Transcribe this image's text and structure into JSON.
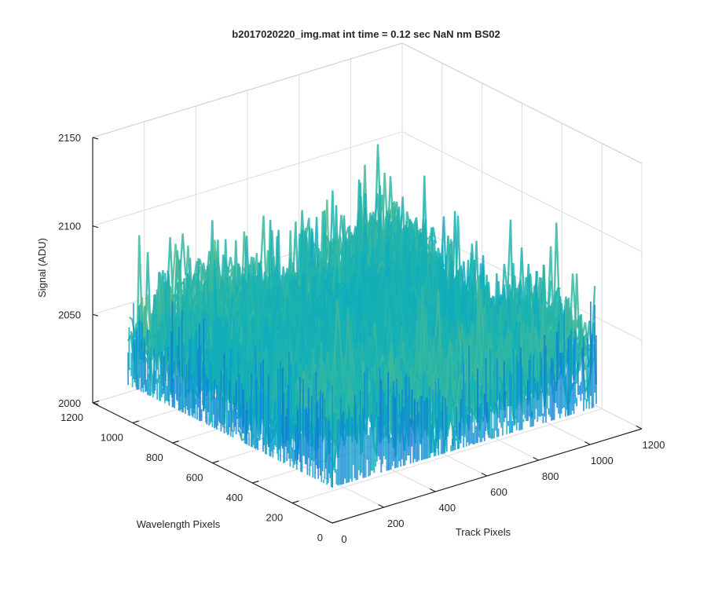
{
  "chart_data": {
    "type": "surface",
    "title": "b2017020220_img.mat int time = 0.12 sec  NaN nm BS02",
    "xlabel": "Track Pixels",
    "ylabel": "Wavelength Pixels",
    "zlabel": "Signal (ADU)",
    "xlim": [
      0,
      1200
    ],
    "ylim": [
      0,
      1200
    ],
    "zlim": [
      2000,
      2150
    ],
    "x_ticks": [
      0,
      200,
      400,
      600,
      800,
      1000,
      1200
    ],
    "y_ticks": [
      0,
      200,
      400,
      600,
      800,
      1000,
      1200
    ],
    "z_ticks": [
      2000,
      2050,
      2100,
      2150
    ],
    "data_extent": {
      "x": [
        1,
        1024
      ],
      "y": [
        1,
        1024
      ]
    },
    "signal_baseline": 2050,
    "signal_noise_range": [
      2020,
      2145
    ],
    "grid": true,
    "colormap": "parula"
  }
}
